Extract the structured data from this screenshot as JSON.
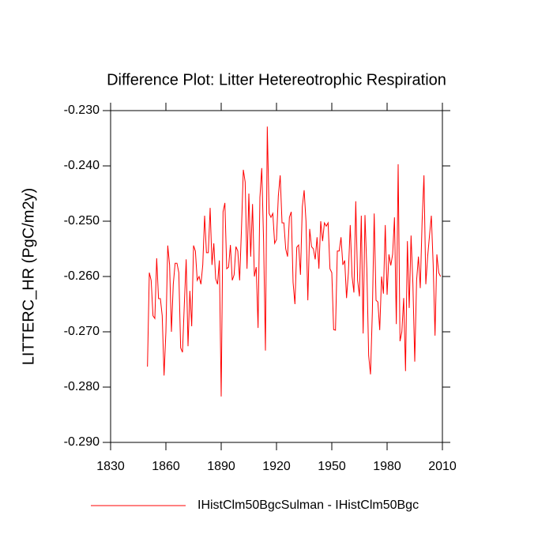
{
  "chart_data": {
    "type": "line",
    "title": "Difference Plot: Litter Hetereotrophic Respiration",
    "y_label": "LITTERC_HR  (PgC/m2y)",
    "x": [
      1850,
      1851,
      1852,
      1853,
      1854,
      1855,
      1856,
      1857,
      1858,
      1859,
      1860,
      1861,
      1862,
      1863,
      1864,
      1865,
      1866,
      1867,
      1868,
      1869,
      1870,
      1871,
      1872,
      1873,
      1874,
      1875,
      1876,
      1877,
      1878,
      1879,
      1880,
      1881,
      1882,
      1883,
      1884,
      1885,
      1886,
      1887,
      1888,
      1889,
      1890,
      1891,
      1892,
      1893,
      1894,
      1895,
      1896,
      1897,
      1898,
      1899,
      1900,
      1901,
      1902,
      1903,
      1904,
      1905,
      1906,
      1907,
      1908,
      1909,
      1910,
      1911,
      1912,
      1913,
      1914,
      1915,
      1916,
      1917,
      1918,
      1919,
      1920,
      1921,
      1922,
      1923,
      1924,
      1925,
      1926,
      1927,
      1928,
      1929,
      1930,
      1931,
      1932,
      1933,
      1934,
      1935,
      1936,
      1937,
      1938,
      1939,
      1940,
      1941,
      1942,
      1943,
      1944,
      1945,
      1946,
      1947,
      1948,
      1949,
      1950,
      1951,
      1952,
      1953,
      1954,
      1955,
      1956,
      1957,
      1958,
      1959,
      1960,
      1961,
      1962,
      1963,
      1964,
      1965,
      1966,
      1967,
      1968,
      1969,
      1970,
      1971,
      1972,
      1973,
      1974,
      1975,
      1976,
      1977,
      1978,
      1979,
      1980,
      1981,
      1982,
      1983,
      1984,
      1985,
      1986,
      1987,
      1988,
      1989,
      1990,
      1991,
      1992,
      1993,
      1994,
      1995,
      1996,
      1997,
      1998,
      1999,
      2000,
      2001,
      2002,
      2003,
      2004,
      2005,
      2006,
      2007,
      2008,
      2009
    ],
    "series": [
      {
        "name": "IHistClm50BgcSulman - IHistClm50Bgc",
        "color": "#ff0000",
        "values": [
          -0.2763,
          -0.2593,
          -0.2607,
          -0.2671,
          -0.2676,
          -0.2567,
          -0.264,
          -0.264,
          -0.2671,
          -0.2779,
          -0.27,
          -0.2544,
          -0.2579,
          -0.27,
          -0.2614,
          -0.2576,
          -0.2576,
          -0.2593,
          -0.2729,
          -0.2737,
          -0.265,
          -0.2569,
          -0.2726,
          -0.2626,
          -0.269,
          -0.2544,
          -0.2554,
          -0.2607,
          -0.26,
          -0.2614,
          -0.2579,
          -0.249,
          -0.2557,
          -0.2557,
          -0.2476,
          -0.2579,
          -0.254,
          -0.2604,
          -0.2614,
          -0.2571,
          -0.2817,
          -0.2483,
          -0.2467,
          -0.2586,
          -0.2583,
          -0.2543,
          -0.2607,
          -0.2597,
          -0.2546,
          -0.2554,
          -0.2607,
          -0.2514,
          -0.2407,
          -0.2429,
          -0.2586,
          -0.245,
          -0.2564,
          -0.2469,
          -0.26,
          -0.2583,
          -0.2693,
          -0.2457,
          -0.2404,
          -0.2536,
          -0.2734,
          -0.2329,
          -0.2486,
          -0.2493,
          -0.2486,
          -0.254,
          -0.2533,
          -0.2454,
          -0.2417,
          -0.2503,
          -0.2503,
          -0.255,
          -0.2564,
          -0.2493,
          -0.2483,
          -0.2611,
          -0.265,
          -0.2547,
          -0.2543,
          -0.2597,
          -0.2474,
          -0.2444,
          -0.25,
          -0.2643,
          -0.2514,
          -0.2546,
          -0.255,
          -0.2569,
          -0.2529,
          -0.2586,
          -0.25,
          -0.2536,
          -0.2503,
          -0.2509,
          -0.2503,
          -0.2586,
          -0.2593,
          -0.2696,
          -0.2697,
          -0.2554,
          -0.2554,
          -0.2529,
          -0.2579,
          -0.2571,
          -0.2639,
          -0.2593,
          -0.2507,
          -0.26,
          -0.2629,
          -0.2464,
          -0.2607,
          -0.2636,
          -0.249,
          -0.2703,
          -0.2489,
          -0.2586,
          -0.2743,
          -0.2777,
          -0.2664,
          -0.2486,
          -0.2643,
          -0.2646,
          -0.2697,
          -0.26,
          -0.2631,
          -0.2507,
          -0.2633,
          -0.256,
          -0.258,
          -0.256,
          -0.2493,
          -0.2686,
          -0.2397,
          -0.2717,
          -0.27,
          -0.2639,
          -0.2771,
          -0.2536,
          -0.2657,
          -0.2526,
          -0.2614,
          -0.2754,
          -0.2607,
          -0.2564,
          -0.2621,
          -0.25,
          -0.2417,
          -0.2614,
          -0.2564,
          -0.2526,
          -0.249,
          -0.2579,
          -0.2707,
          -0.256,
          -0.2593,
          -0.26
        ]
      }
    ],
    "xlim": [
      1830,
      2010
    ],
    "xticks": [
      1830,
      1860,
      1890,
      1920,
      1950,
      1980,
      2010
    ],
    "ylim": [
      -0.29,
      -0.23
    ],
    "yticks": [
      {
        "value": -0.29,
        "label": "-0.290"
      },
      {
        "value": -0.28,
        "label": "-0.280"
      },
      {
        "value": -0.27,
        "label": "-0.270"
      },
      {
        "value": -0.26,
        "label": "-0.260"
      },
      {
        "value": -0.25,
        "label": "-0.250"
      },
      {
        "value": -0.24,
        "label": "-0.240"
      },
      {
        "value": -0.23,
        "label": "-0.230"
      }
    ]
  }
}
